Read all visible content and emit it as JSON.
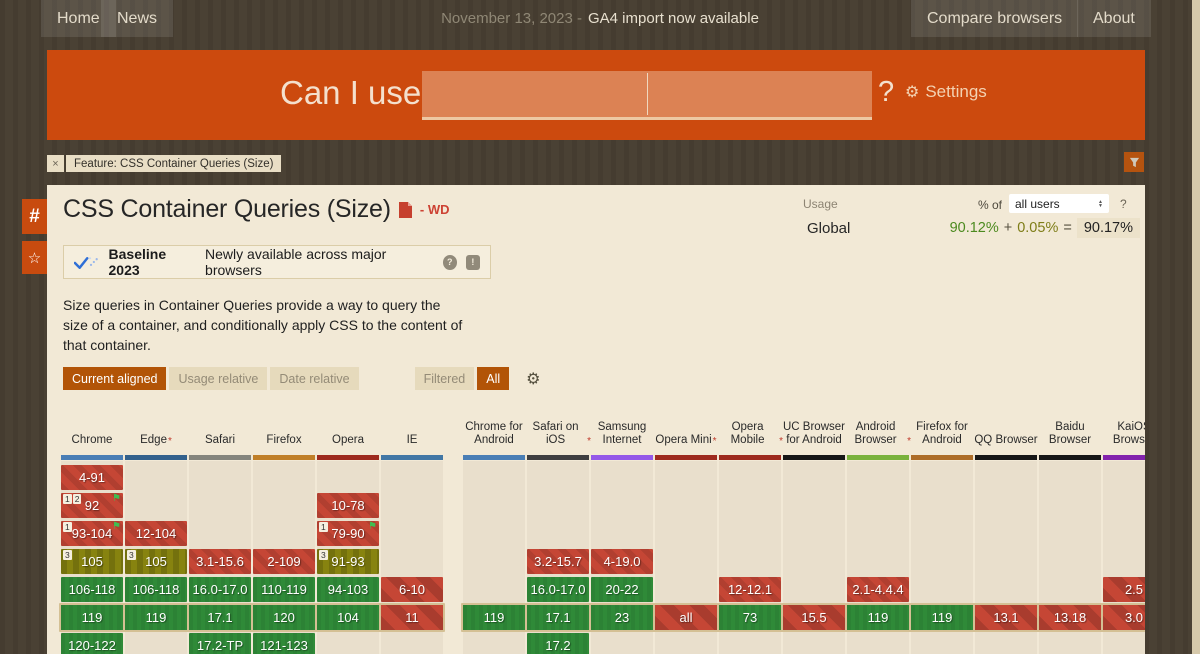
{
  "topnav": {
    "home": "Home",
    "news": "News",
    "notice_date": "November 13, 2023 -",
    "notice_text": "GA4 import now available",
    "compare": "Compare browsers",
    "about": "About"
  },
  "header": {
    "title": "Can I use",
    "search_value": "",
    "question": "?",
    "settings": "Settings",
    "gear_icon": "⚙"
  },
  "filterbar": {
    "close": "×",
    "tag": "Feature: CSS Container Queries (Size)"
  },
  "sidebar": {
    "hash": "#",
    "star": "☆"
  },
  "feature": {
    "title": "CSS Container Queries (Size)",
    "status": "- WD",
    "usage_label": "Usage",
    "percent_of": "% of",
    "usage_filter": "all users",
    "help": "?",
    "region": "Global",
    "pct_full": "90.12%",
    "plus": "+",
    "pct_partial": "0.05%",
    "equals": "=",
    "pct_total": "90.17%",
    "baseline_title": "Baseline 2023",
    "baseline_desc": "Newly available across major browsers",
    "baseline_help": "?",
    "baseline_feedback": "!",
    "description": "Size queries in Container Queries provide a way to query the size of a container, and conditionally apply CSS to the content of that container.",
    "view_buttons": [
      {
        "label": "Current aligned",
        "active": true
      },
      {
        "label": "Usage relative",
        "active": false
      },
      {
        "label": "Date relative",
        "active": false
      }
    ],
    "filtered_label": "Filtered",
    "all_label": "All",
    "gear_icon": "⚙"
  },
  "table": {
    "rows": 7,
    "current_row": 5,
    "legend_colors": {
      "supported": "#2f8a38",
      "not_supported": "#c54635",
      "partial": "#87830f"
    },
    "columns": [
      {
        "name": "Chrome",
        "group": "desktop",
        "bar": "#4a7eb5",
        "asterisk": false,
        "cells": [
          {
            "row": 0,
            "text": "4-91",
            "type": "n"
          },
          {
            "row": 1,
            "text": "92",
            "type": "n",
            "badges": [
              "1",
              "2"
            ],
            "flag": true
          },
          {
            "row": 2,
            "text": "93-104",
            "type": "n",
            "badges": [
              "1"
            ],
            "flag": true
          },
          {
            "row": 3,
            "text": "105",
            "type": "a",
            "badges": [
              "3"
            ]
          },
          {
            "row": 4,
            "text": "106-118",
            "type": "y"
          },
          {
            "row": 5,
            "text": "119",
            "type": "y"
          },
          {
            "row": 6,
            "text": "120-122",
            "type": "y"
          }
        ]
      },
      {
        "name": "Edge",
        "group": "desktop",
        "bar": "#33618c",
        "asterisk": true,
        "cells": [
          {
            "row": 2,
            "text": "12-104",
            "type": "n"
          },
          {
            "row": 3,
            "text": "105",
            "type": "a",
            "badges": [
              "3"
            ]
          },
          {
            "row": 4,
            "text": "106-118",
            "type": "y"
          },
          {
            "row": 5,
            "text": "119",
            "type": "y"
          }
        ]
      },
      {
        "name": "Safari",
        "group": "desktop",
        "bar": "#85857d",
        "asterisk": false,
        "cells": [
          {
            "row": 3,
            "text": "3.1-15.6",
            "type": "n"
          },
          {
            "row": 4,
            "text": "16.0-17.0",
            "type": "y"
          },
          {
            "row": 5,
            "text": "17.1",
            "type": "y"
          },
          {
            "row": 6,
            "text": "17.2-TP",
            "type": "y"
          }
        ]
      },
      {
        "name": "Firefox",
        "group": "desktop",
        "bar": "#c07f28",
        "asterisk": false,
        "cells": [
          {
            "row": 3,
            "text": "2-109",
            "type": "n"
          },
          {
            "row": 4,
            "text": "110-119",
            "type": "y"
          },
          {
            "row": 5,
            "text": "120",
            "type": "y"
          },
          {
            "row": 6,
            "text": "121-123",
            "type": "y"
          }
        ]
      },
      {
        "name": "Opera",
        "group": "desktop",
        "bar": "#9e2a1e",
        "asterisk": false,
        "cells": [
          {
            "row": 1,
            "text": "10-78",
            "type": "n"
          },
          {
            "row": 2,
            "text": "79-90",
            "type": "n",
            "badges": [
              "1"
            ],
            "flag": true
          },
          {
            "row": 3,
            "text": "91-93",
            "type": "a",
            "badges": [
              "3"
            ]
          },
          {
            "row": 4,
            "text": "94-103",
            "type": "y"
          },
          {
            "row": 5,
            "text": "104",
            "type": "y"
          }
        ]
      },
      {
        "name": "IE",
        "group": "desktop",
        "bar": "#4277a5",
        "asterisk": false,
        "cells": [
          {
            "row": 4,
            "text": "6-10",
            "type": "n",
            "wide": true
          },
          {
            "row": 5,
            "text": "11",
            "type": "n",
            "wide": true
          }
        ]
      },
      {
        "name": "Chrome for Android",
        "group": "mobile",
        "bar": "#4a7eb5",
        "asterisk": false,
        "cells": [
          {
            "row": 5,
            "text": "119",
            "type": "y"
          }
        ]
      },
      {
        "name": "Safari on iOS",
        "group": "mobile",
        "bar": "#3f3f41",
        "asterisk": true,
        "cells": [
          {
            "row": 3,
            "text": "3.2-15.7",
            "type": "n"
          },
          {
            "row": 4,
            "text": "16.0-17.0",
            "type": "y"
          },
          {
            "row": 5,
            "text": "17.1",
            "type": "y"
          },
          {
            "row": 6,
            "text": "17.2",
            "type": "y"
          }
        ]
      },
      {
        "name": "Samsung Internet",
        "group": "mobile",
        "bar": "#9458e8",
        "asterisk": false,
        "cells": [
          {
            "row": 3,
            "text": "4-19.0",
            "type": "n"
          },
          {
            "row": 4,
            "text": "20-22",
            "type": "y"
          },
          {
            "row": 5,
            "text": "23",
            "type": "y"
          }
        ]
      },
      {
        "name": "Opera Mini",
        "group": "mobile",
        "bar": "#9e2a1e",
        "asterisk": true,
        "cells": [
          {
            "row": 5,
            "text": "all",
            "type": "n",
            "wide": true
          }
        ]
      },
      {
        "name": "Opera Mobile",
        "group": "mobile",
        "bar": "#9e2a1e",
        "asterisk": true,
        "cells": [
          {
            "row": 4,
            "text": "12-12.1",
            "type": "n"
          },
          {
            "row": 5,
            "text": "73",
            "type": "y"
          }
        ]
      },
      {
        "name": "UC Browser for Android",
        "group": "mobile",
        "bar": "#171717",
        "asterisk": false,
        "cells": [
          {
            "row": 5,
            "text": "15.5",
            "type": "n",
            "wide": true
          }
        ]
      },
      {
        "name": "Android Browser",
        "group": "mobile",
        "bar": "#7ab23c",
        "asterisk": true,
        "cells": [
          {
            "row": 4,
            "text": "2.1-4.4.4",
            "type": "n"
          },
          {
            "row": 5,
            "text": "119",
            "type": "y"
          }
        ]
      },
      {
        "name": "Firefox for Android",
        "group": "mobile",
        "bar": "#ad6d28",
        "asterisk": false,
        "cells": [
          {
            "row": 5,
            "text": "119",
            "type": "y"
          }
        ]
      },
      {
        "name": "QQ Browser",
        "group": "mobile",
        "bar": "#171717",
        "asterisk": false,
        "cells": [
          {
            "row": 5,
            "text": "13.1",
            "type": "n",
            "wide": true
          }
        ]
      },
      {
        "name": "Baidu Browser",
        "group": "mobile",
        "bar": "#171717",
        "asterisk": false,
        "cells": [
          {
            "row": 5,
            "text": "13.18",
            "type": "n",
            "wide": true
          }
        ]
      },
      {
        "name": "KaiOS Browser",
        "group": "mobile",
        "bar": "#8323ad",
        "asterisk": false,
        "cells": [
          {
            "row": 4,
            "text": "2.5",
            "type": "n",
            "wide": true
          },
          {
            "row": 5,
            "text": "3.0",
            "type": "n",
            "wide": true
          }
        ]
      }
    ]
  }
}
